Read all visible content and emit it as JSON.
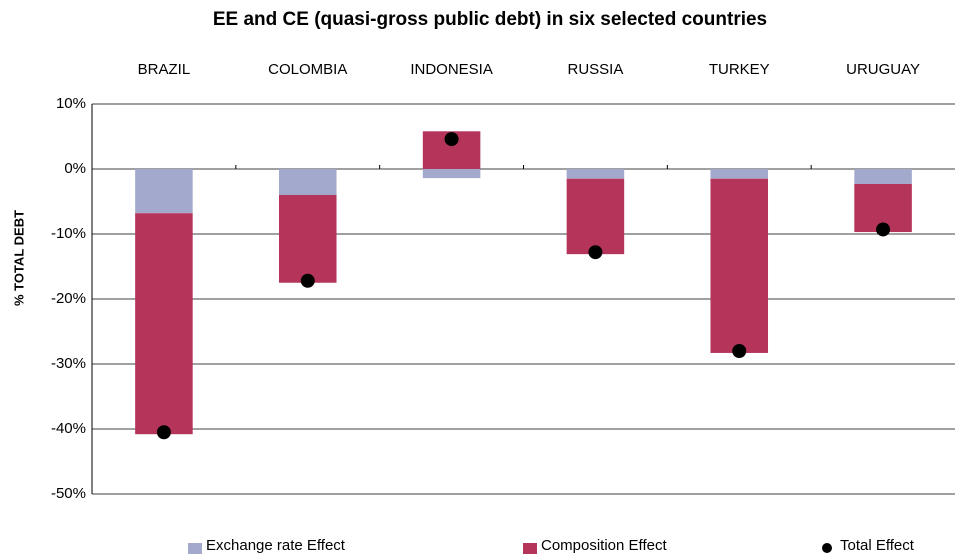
{
  "chart_data": {
    "type": "bar",
    "stacked": true,
    "title": "EE and CE (quasi-gross public debt) in six selected countries",
    "y_label": "% TOTAL DEBT",
    "categories": [
      "BRAZIL",
      "COLOMBIA",
      "INDONESIA",
      "RUSSIA",
      "TURKEY",
      "URUGUAY"
    ],
    "series": [
      {
        "name": "Exchange rate Effect",
        "color": "#a3a9cc",
        "type": "bar",
        "values": [
          -6.8,
          -4.0,
          -1.4,
          -1.5,
          -1.5,
          -2.3
        ]
      },
      {
        "name": "Composition Effect",
        "color": "#b5345a",
        "type": "bar",
        "values": [
          -34.0,
          -13.5,
          5.8,
          -11.6,
          -26.8,
          -7.4
        ]
      },
      {
        "name": "Total Effect",
        "color": "#000000",
        "type": "scatter",
        "values": [
          -40.5,
          -17.2,
          4.6,
          -12.8,
          -28.0,
          -9.3
        ]
      }
    ],
    "ylim": [
      -50,
      10
    ],
    "yticks": [
      {
        "value": 10,
        "label": "10%"
      },
      {
        "value": 0,
        "label": "0%"
      },
      {
        "value": -10,
        "label": "-10%"
      },
      {
        "value": -20,
        "label": "-20%"
      },
      {
        "value": -30,
        "label": "-30%"
      },
      {
        "value": -40,
        "label": "-40%"
      },
      {
        "value": -50,
        "label": "-50%"
      }
    ],
    "grid": true,
    "legend": "bottom"
  }
}
